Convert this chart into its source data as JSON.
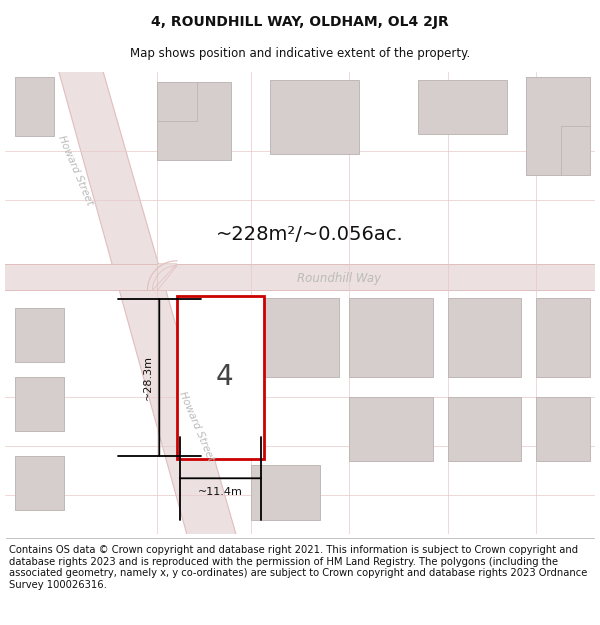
{
  "title": "4, ROUNDHILL WAY, OLDHAM, OL4 2JR",
  "subtitle": "Map shows position and indicative extent of the property.",
  "area_text": "~228m²/~0.056ac.",
  "dim_height": "~28.3m",
  "dim_width": "~11.4m",
  "property_number": "4",
  "street_label_upper": "Howard Street",
  "street_label_lower": "Howard Street",
  "road_name": "Roundhill Way",
  "footer_text": "Contains OS data © Crown copyright and database right 2021. This information is subject to Crown copyright and database rights 2023 and is reproduced with the permission of HM Land Registry. The polygons (including the associated geometry, namely x, y co-ordinates) are subject to Crown copyright and database rights 2023 Ordnance Survey 100026316.",
  "map_bg": "#f7f2f2",
  "road_fill": "#ede0e0",
  "building_fill": "#d6cecc",
  "building_edge": "#c0b8b6",
  "property_fill": "#ffffff",
  "property_edge": "#cc0000",
  "title_fontsize": 10,
  "subtitle_fontsize": 8.5,
  "area_fontsize": 14,
  "footer_fontsize": 7.2
}
